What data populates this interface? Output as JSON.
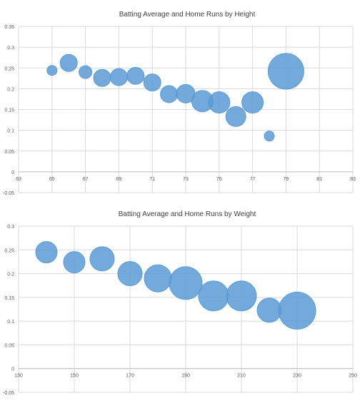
{
  "chart_data": [
    {
      "type": "bubble",
      "title": "Batting Average and Home Runs by Height",
      "xlabel": "",
      "ylabel": "",
      "xlim": [
        63,
        83
      ],
      "ylim": [
        -0.05,
        0.35
      ],
      "x_ticks": [
        63,
        65,
        67,
        69,
        71,
        73,
        75,
        77,
        79,
        81,
        83
      ],
      "y_ticks": [
        -0.05,
        0,
        0.05,
        0.1,
        0.15,
        0.2,
        0.25,
        0.3,
        0.35
      ],
      "y_tick_labels": [
        "-0.05",
        "0",
        "0.05",
        "0.1",
        "0.15",
        "0.2",
        "0.25",
        "0.3",
        "0.35"
      ],
      "grid": "vertical-and-horizontal",
      "legend": "none",
      "color": "#5b9bd5",
      "points": [
        {
          "x": 65,
          "y": 0.244,
          "size": 7
        },
        {
          "x": 66,
          "y": 0.262,
          "size": 12
        },
        {
          "x": 67,
          "y": 0.24,
          "size": 9
        },
        {
          "x": 68,
          "y": 0.226,
          "size": 12
        },
        {
          "x": 69,
          "y": 0.228,
          "size": 12
        },
        {
          "x": 70,
          "y": 0.231,
          "size": 12
        },
        {
          "x": 71,
          "y": 0.215,
          "size": 12
        },
        {
          "x": 72,
          "y": 0.187,
          "size": 12
        },
        {
          "x": 73,
          "y": 0.188,
          "size": 13
        },
        {
          "x": 74,
          "y": 0.17,
          "size": 15
        },
        {
          "x": 75,
          "y": 0.167,
          "size": 15
        },
        {
          "x": 76,
          "y": 0.133,
          "size": 14
        },
        {
          "x": 77,
          "y": 0.167,
          "size": 15
        },
        {
          "x": 78,
          "y": 0.086,
          "size": 7
        },
        {
          "x": 79,
          "y": 0.242,
          "size": 25
        }
      ]
    },
    {
      "type": "bubble",
      "title": "Batting Average and Home Runs by Weight",
      "xlabel": "",
      "ylabel": "",
      "xlim": [
        130,
        250
      ],
      "ylim": [
        -0.05,
        0.3
      ],
      "x_ticks": [
        130,
        150,
        170,
        190,
        210,
        230,
        250
      ],
      "y_ticks": [
        -0.05,
        0,
        0.05,
        0.1,
        0.15,
        0.2,
        0.25,
        0.3
      ],
      "y_tick_labels": [
        "-0.05",
        "0",
        "0.05",
        "0.1",
        "0.15",
        "0.2",
        "0.25",
        "0.3"
      ],
      "grid": "vertical-and-horizontal",
      "legend": "none",
      "color": "#5b9bd5",
      "points": [
        {
          "x": 140,
          "y": 0.245,
          "size": 15
        },
        {
          "x": 150,
          "y": 0.224,
          "size": 15
        },
        {
          "x": 160,
          "y": 0.231,
          "size": 17
        },
        {
          "x": 170,
          "y": 0.2,
          "size": 17
        },
        {
          "x": 180,
          "y": 0.19,
          "size": 19
        },
        {
          "x": 190,
          "y": 0.18,
          "size": 23
        },
        {
          "x": 200,
          "y": 0.153,
          "size": 21
        },
        {
          "x": 210,
          "y": 0.153,
          "size": 21
        },
        {
          "x": 220,
          "y": 0.123,
          "size": 17
        },
        {
          "x": 230,
          "y": 0.122,
          "size": 26
        }
      ]
    }
  ]
}
